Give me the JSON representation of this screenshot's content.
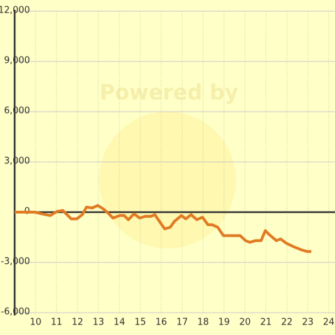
{
  "chart_data": {
    "type": "line",
    "watermark": "Powered by",
    "xlim": [
      9,
      24.3
    ],
    "xticks": [
      10,
      11,
      12,
      13,
      14,
      15,
      16,
      17,
      18,
      19,
      20,
      21,
      22,
      23,
      24
    ],
    "ylim": [
      -6000,
      12000
    ],
    "yticks": [
      {
        "value": -6000,
        "label": "-6,000"
      },
      {
        "value": -3000,
        "label": "-3,000"
      },
      0,
      {
        "value": 3000,
        "label": "3,000"
      },
      {
        "value": 6000,
        "label": "6,000"
      },
      {
        "value": 9000,
        "label": "9,000"
      },
      {
        "value": 12000,
        "label": "12,000"
      }
    ],
    "grid": true,
    "series": [
      {
        "color": "#e07b24",
        "x": [
          9,
          9.97,
          10.3,
          10.7,
          11.03,
          11.3,
          11.7,
          11.97,
          12.23,
          12.43,
          12.7,
          12.97,
          13.23,
          13.5,
          13.7,
          14.03,
          14.23,
          14.43,
          14.7,
          14.97,
          15.23,
          15.5,
          15.7,
          15.97,
          16.17,
          16.43,
          16.63,
          16.97,
          17.17,
          17.43,
          17.7,
          17.97,
          18.23,
          18.43,
          18.7,
          18.97,
          19.23,
          19.77,
          20.03,
          20.23,
          20.5,
          20.77,
          20.97,
          21.17,
          21.5,
          21.7,
          21.97,
          22.3,
          22.7,
          22.97,
          23.17
        ],
        "values": [
          0,
          0,
          -100,
          -200,
          50,
          100,
          -400,
          -400,
          -150,
          300,
          250,
          400,
          200,
          -100,
          -350,
          -200,
          -200,
          -450,
          -100,
          -350,
          -250,
          -250,
          -150,
          -650,
          -1000,
          -900,
          -550,
          -200,
          -400,
          -150,
          -450,
          -300,
          -750,
          -750,
          -900,
          -1400,
          -1400,
          -1400,
          -1700,
          -1800,
          -1700,
          -1700,
          -1100,
          -1350,
          -1700,
          -1600,
          -1850,
          -2050,
          -2250,
          -2350,
          -2350
        ]
      }
    ]
  }
}
